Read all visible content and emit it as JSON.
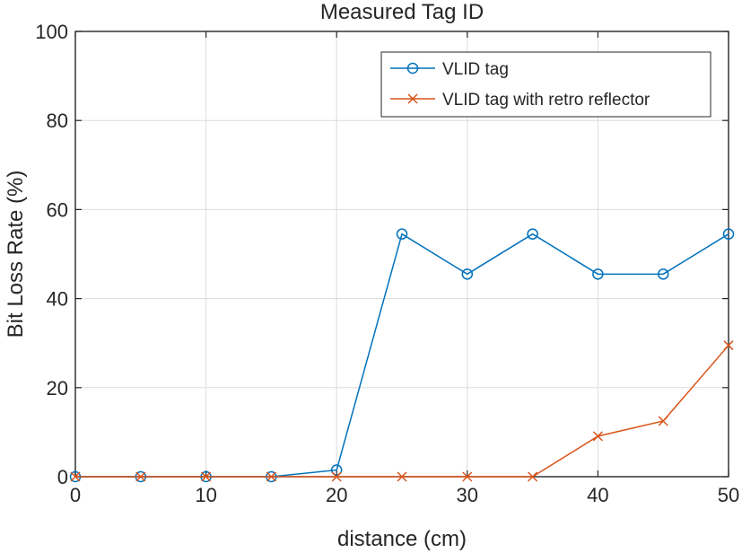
{
  "chart_data": {
    "type": "line",
    "title": "Measured Tag ID",
    "xlabel": "distance (cm)",
    "ylabel": "Bit Loss Rate (%)",
    "xlim": [
      0,
      50
    ],
    "ylim": [
      0,
      100
    ],
    "xticks": [
      0,
      10,
      20,
      30,
      40,
      50
    ],
    "yticks": [
      0,
      20,
      40,
      60,
      80,
      100
    ],
    "grid": true,
    "legend_position": "top-right",
    "x": [
      0,
      5,
      10,
      15,
      20,
      25,
      30,
      35,
      40,
      45,
      50
    ],
    "series": [
      {
        "name": "VLID tag",
        "marker": "circle",
        "color": "#0072BD",
        "values": [
          0,
          0,
          0,
          0,
          1.5,
          54.5,
          45.5,
          54.5,
          45.5,
          45.5,
          54.5
        ]
      },
      {
        "name": "VLID tag with retro reflector",
        "marker": "x",
        "color": "#D95319",
        "values": [
          0,
          0,
          0,
          0,
          0,
          0,
          0,
          0,
          9.1,
          12.5,
          29.5
        ]
      }
    ]
  }
}
